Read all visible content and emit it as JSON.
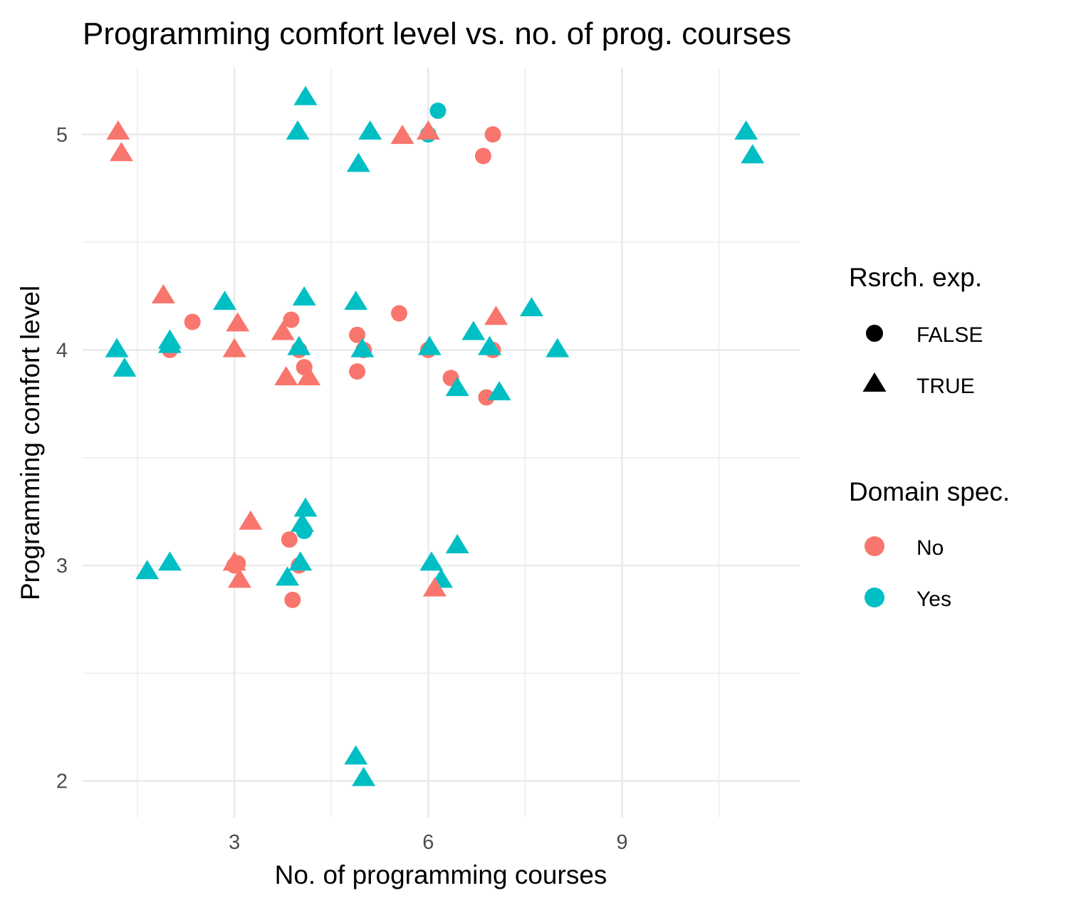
{
  "chart_data": {
    "type": "scatter",
    "title": "Programming comfort level vs. no. of prog. courses",
    "xlabel": "No. of programming courses",
    "ylabel": "Programming comfort level",
    "xlim": [
      0.65,
      11.75
    ],
    "ylim": [
      1.83,
      5.31
    ],
    "x_ticks": [
      3,
      6,
      9
    ],
    "y_ticks": [
      2,
      3,
      4,
      5
    ],
    "grid": true,
    "legends": [
      {
        "title": "Rsrch. exp.",
        "aesthetic": "shape",
        "entries": [
          {
            "label": "FALSE",
            "shape": "circle"
          },
          {
            "label": "TRUE",
            "shape": "triangle"
          }
        ]
      },
      {
        "title": "Domain spec.",
        "aesthetic": "color",
        "entries": [
          {
            "label": "No",
            "color": "#F8766D"
          },
          {
            "label": "Yes",
            "color": "#00BFC4"
          }
        ]
      }
    ],
    "legend_position": "right",
    "points": [
      {
        "x": 1.2,
        "y": 5.01,
        "shape": "triangle",
        "group": "No"
      },
      {
        "x": 1.25,
        "y": 4.91,
        "shape": "triangle",
        "group": "No"
      },
      {
        "x": 1.18,
        "y": 4.0,
        "shape": "triangle",
        "group": "Yes"
      },
      {
        "x": 1.3,
        "y": 3.91,
        "shape": "triangle",
        "group": "Yes"
      },
      {
        "x": 1.9,
        "y": 4.25,
        "shape": "triangle",
        "group": "No"
      },
      {
        "x": 2.0,
        "y": 4.0,
        "shape": "circle",
        "group": "No"
      },
      {
        "x": 2.0,
        "y": 4.02,
        "shape": "triangle",
        "group": "Yes"
      },
      {
        "x": 2.0,
        "y": 4.04,
        "shape": "triangle",
        "group": "Yes"
      },
      {
        "x": 2.35,
        "y": 4.13,
        "shape": "circle",
        "group": "No"
      },
      {
        "x": 1.65,
        "y": 2.97,
        "shape": "triangle",
        "group": "Yes"
      },
      {
        "x": 2.0,
        "y": 3.01,
        "shape": "triangle",
        "group": "Yes"
      },
      {
        "x": 2.85,
        "y": 4.22,
        "shape": "triangle",
        "group": "Yes"
      },
      {
        "x": 3.05,
        "y": 4.12,
        "shape": "triangle",
        "group": "No"
      },
      {
        "x": 3.0,
        "y": 4.0,
        "shape": "triangle",
        "group": "No"
      },
      {
        "x": 3.0,
        "y": 3.0,
        "shape": "circle",
        "group": "No"
      },
      {
        "x": 3.05,
        "y": 3.01,
        "shape": "circle",
        "group": "No"
      },
      {
        "x": 3.0,
        "y": 3.01,
        "shape": "triangle",
        "group": "No"
      },
      {
        "x": 3.25,
        "y": 3.2,
        "shape": "triangle",
        "group": "No"
      },
      {
        "x": 3.08,
        "y": 2.93,
        "shape": "triangle",
        "group": "No"
      },
      {
        "x": 4.1,
        "y": 5.17,
        "shape": "triangle",
        "group": "Yes"
      },
      {
        "x": 3.98,
        "y": 5.01,
        "shape": "triangle",
        "group": "Yes"
      },
      {
        "x": 4.08,
        "y": 4.24,
        "shape": "triangle",
        "group": "Yes"
      },
      {
        "x": 3.88,
        "y": 4.14,
        "shape": "circle",
        "group": "No"
      },
      {
        "x": 3.75,
        "y": 4.08,
        "shape": "triangle",
        "group": "No"
      },
      {
        "x": 4.0,
        "y": 4.0,
        "shape": "circle",
        "group": "No"
      },
      {
        "x": 4.0,
        "y": 4.01,
        "shape": "triangle",
        "group": "Yes"
      },
      {
        "x": 4.08,
        "y": 3.92,
        "shape": "circle",
        "group": "No"
      },
      {
        "x": 3.8,
        "y": 3.87,
        "shape": "triangle",
        "group": "No"
      },
      {
        "x": 4.15,
        "y": 3.87,
        "shape": "triangle",
        "group": "No"
      },
      {
        "x": 4.1,
        "y": 3.26,
        "shape": "triangle",
        "group": "Yes"
      },
      {
        "x": 4.05,
        "y": 3.19,
        "shape": "triangle",
        "group": "Yes"
      },
      {
        "x": 4.08,
        "y": 3.16,
        "shape": "circle",
        "group": "Yes"
      },
      {
        "x": 3.85,
        "y": 3.12,
        "shape": "circle",
        "group": "No"
      },
      {
        "x": 4.0,
        "y": 3.0,
        "shape": "circle",
        "group": "No"
      },
      {
        "x": 4.02,
        "y": 3.01,
        "shape": "triangle",
        "group": "Yes"
      },
      {
        "x": 3.82,
        "y": 2.94,
        "shape": "triangle",
        "group": "Yes"
      },
      {
        "x": 3.9,
        "y": 2.84,
        "shape": "circle",
        "group": "No"
      },
      {
        "x": 5.1,
        "y": 5.01,
        "shape": "triangle",
        "group": "Yes"
      },
      {
        "x": 4.92,
        "y": 4.86,
        "shape": "triangle",
        "group": "Yes"
      },
      {
        "x": 4.88,
        "y": 4.22,
        "shape": "triangle",
        "group": "Yes"
      },
      {
        "x": 4.9,
        "y": 4.07,
        "shape": "circle",
        "group": "No"
      },
      {
        "x": 5.0,
        "y": 4.0,
        "shape": "circle",
        "group": "No"
      },
      {
        "x": 4.98,
        "y": 4.0,
        "shape": "triangle",
        "group": "Yes"
      },
      {
        "x": 4.9,
        "y": 3.9,
        "shape": "circle",
        "group": "No"
      },
      {
        "x": 4.88,
        "y": 2.11,
        "shape": "triangle",
        "group": "Yes"
      },
      {
        "x": 5.0,
        "y": 2.01,
        "shape": "triangle",
        "group": "Yes"
      },
      {
        "x": 6.15,
        "y": 5.11,
        "shape": "circle",
        "group": "Yes"
      },
      {
        "x": 6.0,
        "y": 5.0,
        "shape": "circle",
        "group": "Yes"
      },
      {
        "x": 6.0,
        "y": 5.01,
        "shape": "triangle",
        "group": "No"
      },
      {
        "x": 5.6,
        "y": 4.99,
        "shape": "triangle",
        "group": "No"
      },
      {
        "x": 5.55,
        "y": 4.17,
        "shape": "circle",
        "group": "No"
      },
      {
        "x": 6.0,
        "y": 4.0,
        "shape": "circle",
        "group": "No"
      },
      {
        "x": 6.02,
        "y": 4.01,
        "shape": "triangle",
        "group": "Yes"
      },
      {
        "x": 6.35,
        "y": 3.87,
        "shape": "circle",
        "group": "No"
      },
      {
        "x": 6.45,
        "y": 3.82,
        "shape": "triangle",
        "group": "Yes"
      },
      {
        "x": 6.45,
        "y": 3.09,
        "shape": "triangle",
        "group": "Yes"
      },
      {
        "x": 6.05,
        "y": 3.01,
        "shape": "triangle",
        "group": "Yes"
      },
      {
        "x": 6.2,
        "y": 2.93,
        "shape": "triangle",
        "group": "Yes"
      },
      {
        "x": 6.1,
        "y": 2.89,
        "shape": "triangle",
        "group": "No"
      },
      {
        "x": 7.0,
        "y": 5.0,
        "shape": "circle",
        "group": "No"
      },
      {
        "x": 6.85,
        "y": 4.9,
        "shape": "circle",
        "group": "No"
      },
      {
        "x": 7.05,
        "y": 4.15,
        "shape": "triangle",
        "group": "No"
      },
      {
        "x": 6.7,
        "y": 4.08,
        "shape": "triangle",
        "group": "Yes"
      },
      {
        "x": 7.0,
        "y": 4.0,
        "shape": "circle",
        "group": "No"
      },
      {
        "x": 6.95,
        "y": 4.01,
        "shape": "triangle",
        "group": "Yes"
      },
      {
        "x": 6.9,
        "y": 3.78,
        "shape": "circle",
        "group": "No"
      },
      {
        "x": 7.1,
        "y": 3.8,
        "shape": "triangle",
        "group": "Yes"
      },
      {
        "x": 7.6,
        "y": 4.19,
        "shape": "triangle",
        "group": "Yes"
      },
      {
        "x": 8.0,
        "y": 4.0,
        "shape": "triangle",
        "group": "Yes"
      },
      {
        "x": 10.92,
        "y": 5.01,
        "shape": "triangle",
        "group": "Yes"
      },
      {
        "x": 11.02,
        "y": 4.9,
        "shape": "triangle",
        "group": "Yes"
      }
    ]
  },
  "colors": {
    "No": "#F8766D",
    "Yes": "#00BFC4",
    "legend_shape": "#000000"
  }
}
